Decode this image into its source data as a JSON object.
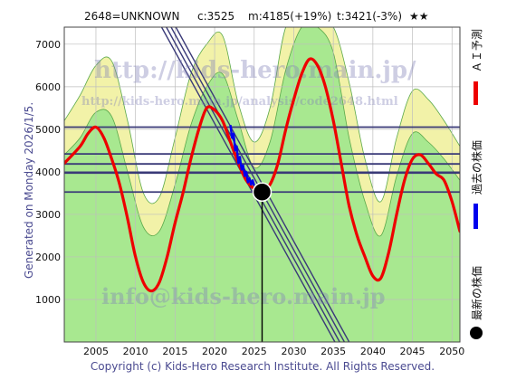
{
  "header": {
    "code": "2648=UNKNOWN",
    "current": "c:3525",
    "max": "m:4185(+19%)",
    "target": "t:3421(-3%)",
    "stars": "★★"
  },
  "generated_label": "Generated on Monday 2026/1/5.",
  "copyright": "Copyright (c) Kids-Hero Research Institute. All Rights Reserved.",
  "watermarks": {
    "main": "http://kids-hero.main.jp/",
    "sub": "http://kids-hero.main.jp/analysis/code2648.html",
    "mail": "info@kids-hero.main.jp"
  },
  "legend": [
    {
      "label": "ＡＩ予測",
      "color": "#ee0000",
      "kind": "line"
    },
    {
      "label": "過去の株価",
      "color": "#0000ee",
      "kind": "line"
    },
    {
      "label": "最新の株価",
      "color": "#000000",
      "kind": "dot"
    }
  ],
  "colors": {
    "forecast": "#ee0000",
    "history": "#0000ee",
    "band_outer": "#f2f2a8",
    "band_inner": "#a8e890",
    "hline": "#3a3a78",
    "trend": "#3a3a78"
  },
  "chart_data": {
    "type": "line",
    "xlim": [
      2001,
      2051
    ],
    "ylim": [
      0,
      7400
    ],
    "x_ticks": [
      2005,
      2010,
      2015,
      2020,
      2025,
      2030,
      2035,
      2040,
      2045,
      2050
    ],
    "y_ticks": [
      1000,
      2000,
      3000,
      4000,
      5000,
      6000,
      7000
    ],
    "grid": true,
    "legend_position": "right",
    "latest": {
      "x": 2026.0,
      "y": 3525
    },
    "horizontal_levels": [
      5050,
      4420,
      4185,
      3980,
      3525
    ],
    "trend_lines": [
      {
        "x1": 2013.3,
        "y1": 7400,
        "x2": 2035.2,
        "y2": 0
      },
      {
        "x1": 2013.9,
        "y1": 7400,
        "x2": 2035.8,
        "y2": 0
      },
      {
        "x1": 2014.5,
        "y1": 7400,
        "x2": 2036.4,
        "y2": 0
      },
      {
        "x1": 2015.1,
        "y1": 7400,
        "x2": 2037.0,
        "y2": 0
      }
    ],
    "series": [
      {
        "name": "ＡＩ予測",
        "x": [
          2001,
          2003,
          2004,
          2005,
          2006,
          2007,
          2008,
          2009,
          2010,
          2011,
          2012,
          2013,
          2014,
          2015,
          2016,
          2017,
          2018,
          2019,
          2020,
          2021,
          2022,
          2023,
          2024,
          2025,
          2026,
          2027,
          2028,
          2029,
          2030,
          2031,
          2032,
          2033,
          2034,
          2035,
          2036,
          2037,
          2038,
          2039,
          2040,
          2041,
          2042,
          2043,
          2044,
          2045,
          2046,
          2047,
          2048,
          2049,
          2050,
          2051
        ],
        "y": [
          4200,
          4600,
          4900,
          5050,
          4800,
          4300,
          3700,
          2900,
          2000,
          1400,
          1200,
          1400,
          2000,
          2800,
          3500,
          4300,
          5000,
          5500,
          5450,
          5200,
          4700,
          4200,
          3800,
          3600,
          3525,
          3700,
          4200,
          5000,
          5700,
          6300,
          6650,
          6500,
          6000,
          5200,
          4200,
          3200,
          2500,
          2000,
          1550,
          1500,
          2100,
          3000,
          3800,
          4300,
          4400,
          4200,
          3950,
          3800,
          3300,
          2600
        ]
      },
      {
        "name": "過去の株価",
        "x": [
          2022.0,
          2022.2,
          2022.4,
          2022.6,
          2022.8,
          2023.0,
          2023.2,
          2023.4,
          2023.6,
          2023.8,
          2024.0,
          2024.2,
          2024.4,
          2024.6,
          2024.8,
          2025.0
        ],
        "y": [
          5100,
          4800,
          4900,
          4500,
          4600,
          4200,
          4350,
          4050,
          4150,
          3900,
          4000,
          3750,
          3850,
          3700,
          3800,
          3680
        ]
      },
      {
        "name": "band_outer_upper",
        "x": [
          2001,
          2003,
          2005,
          2007,
          2009,
          2011,
          2013,
          2015,
          2017,
          2019,
          2021,
          2023,
          2025,
          2027,
          2029,
          2031,
          2033,
          2035,
          2037,
          2039,
          2041,
          2043,
          2045,
          2047,
          2049,
          2051
        ],
        "y": [
          5200,
          5800,
          6500,
          6600,
          5200,
          3500,
          3400,
          4800,
          6300,
          7000,
          7200,
          5600,
          4700,
          5500,
          7400,
          7400,
          7400,
          7400,
          6100,
          4300,
          3300,
          4800,
          5900,
          5700,
          5200,
          4600
        ]
      },
      {
        "name": "band_inner_upper",
        "x": [
          2001,
          2003,
          2005,
          2007,
          2009,
          2011,
          2013,
          2015,
          2017,
          2019,
          2021,
          2023,
          2025,
          2027,
          2029,
          2031,
          2033,
          2035,
          2037,
          2039,
          2041,
          2043,
          2045,
          2047,
          2049,
          2051
        ],
        "y": [
          4400,
          4800,
          5400,
          5300,
          4000,
          2700,
          2600,
          3700,
          5100,
          6000,
          6300,
          5200,
          4100,
          4700,
          6400,
          7400,
          7400,
          6800,
          4800,
          3300,
          2500,
          3900,
          4900,
          4700,
          4300,
          3800
        ]
      }
    ]
  }
}
